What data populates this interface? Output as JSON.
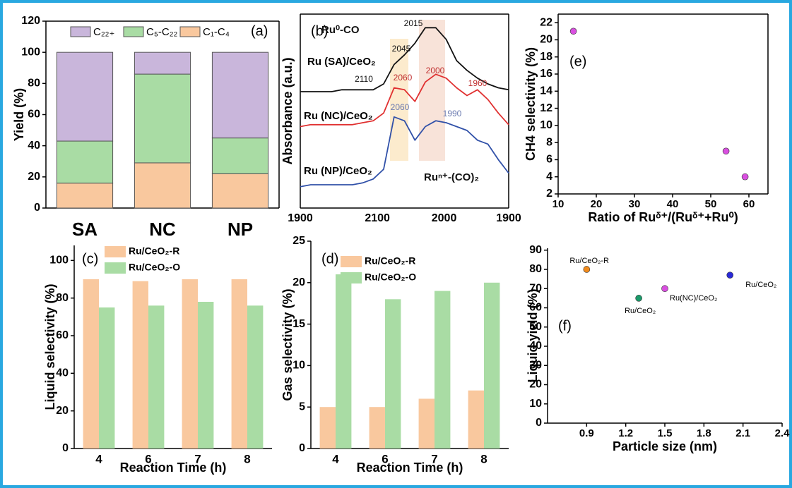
{
  "chart_data": [
    {
      "type": "bar",
      "stacked": true,
      "panel_label": "(a)",
      "ylabel": "Yield (%)",
      "categories": [
        "SA",
        "NC",
        "NP"
      ],
      "series": [
        {
          "name": "C₁-C₄",
          "color": "#f9c89e",
          "values": [
            16,
            29,
            22
          ]
        },
        {
          "name": "C₅-C₂₂",
          "color": "#a9dca4",
          "values": [
            27,
            57,
            23
          ]
        },
        {
          "name": "C₂₂₊",
          "color": "#c9b6db",
          "values": [
            57,
            14,
            55
          ]
        }
      ],
      "ylim": [
        0,
        120
      ],
      "yticks": [
        0,
        20,
        40,
        60,
        80,
        100,
        120
      ]
    },
    {
      "type": "line",
      "panel_label": "(b)",
      "ylabel": "Absorbance (a.u.)",
      "xtick_labels": [
        "1900",
        "2100",
        "2000",
        "1900"
      ],
      "ylim": [
        0,
        100
      ],
      "series": [
        {
          "name": "Ru (SA)/CeO₂",
          "color": "#111111",
          "values": [
            60,
            60,
            60,
            60,
            61,
            61,
            61,
            61,
            64,
            74,
            79,
            85,
            93,
            93,
            87,
            76,
            71,
            67,
            64,
            62,
            61
          ]
        },
        {
          "name": "Ru (NC)/CeO₂",
          "color": "#e03030",
          "values": [
            42,
            43,
            43,
            43,
            43,
            43,
            44,
            45,
            49,
            62,
            61,
            55,
            65,
            69,
            67,
            62,
            58,
            61,
            56,
            49,
            43
          ]
        },
        {
          "name": "Ru (NP)/CeO₂",
          "color": "#3050a8",
          "values": [
            11,
            12,
            12,
            12,
            12,
            12,
            13,
            15,
            20,
            47,
            45,
            35,
            42,
            45,
            44,
            42,
            40,
            35,
            33,
            25,
            18
          ]
        }
      ],
      "annotations": [
        "Ru⁰-CO",
        "2015",
        "2045",
        "2110",
        "2060",
        "2000",
        "1960",
        "2060",
        "1990",
        "Ruⁿ⁺-(CO)₂"
      ]
    },
    {
      "type": "bar",
      "panel_label": "(c)",
      "xlabel": "Reaction Time (h)",
      "ylabel": "Liquid selectivity (%)",
      "categories": [
        "4",
        "6",
        "7",
        "8"
      ],
      "series": [
        {
          "name": "Ru/CeO₂-R",
          "color": "#f9c89e",
          "values": [
            90,
            89,
            90,
            90
          ]
        },
        {
          "name": "Ru/CeO₂-O",
          "color": "#a9dca4",
          "values": [
            75,
            76,
            78,
            76
          ]
        }
      ],
      "ylim": [
        0,
        108
      ],
      "yticks": [
        0,
        20,
        40,
        60,
        80,
        100
      ]
    },
    {
      "type": "bar",
      "panel_label": "(d)",
      "xlabel": "Reaction Time (h)",
      "ylabel": "Gas selectivity (%)",
      "categories": [
        "4",
        "6",
        "7",
        "8"
      ],
      "series": [
        {
          "name": "Ru/CeO₂-R",
          "color": "#f9c89e",
          "values": [
            5,
            5,
            6,
            7
          ]
        },
        {
          "name": "Ru/CeO₂-O",
          "color": "#a9dca4",
          "values": [
            21,
            18,
            19,
            20
          ]
        }
      ],
      "ylim": [
        0,
        25
      ],
      "yticks": [
        0,
        5,
        10,
        15,
        20,
        25
      ]
    },
    {
      "type": "scatter",
      "panel_label": "(e)",
      "xlabel": "Ratio of Ruᵟ⁺/(Ruᵟ⁺+Ru⁰)",
      "ylabel": "CH4 selectivity (%)",
      "x": [
        14,
        54,
        59
      ],
      "values": [
        21,
        7,
        4
      ],
      "color": "#d94fe0",
      "xlim": [
        10,
        65
      ],
      "xticks": [
        10,
        20,
        30,
        40,
        50,
        60
      ],
      "ylim": [
        2,
        23
      ],
      "yticks": [
        2,
        4,
        6,
        8,
        10,
        12,
        14,
        16,
        18,
        20,
        22
      ]
    },
    {
      "type": "scatter",
      "panel_label": "(f)",
      "xlabel": "Particle size (nm)",
      "ylabel": "Liquid yield (%)",
      "x": [
        0.9,
        1.3,
        1.5,
        2.0
      ],
      "values": [
        80,
        65,
        70,
        77
      ],
      "colors": [
        "#f08a1c",
        "#1a9a6a",
        "#d94fe0",
        "#2a2ad8"
      ],
      "point_labels": [
        "Ru/CeO₂-R",
        "Ru/CeO₂",
        "Ru(NC)/CeO₂",
        "Ru/CeO₂"
      ],
      "xlim": [
        0.6,
        2.4
      ],
      "xticks": [
        0.9,
        1.2,
        1.5,
        1.8,
        2.1,
        2.4
      ],
      "ylim": [
        0,
        91
      ],
      "yticks": [
        0,
        10,
        20,
        30,
        40,
        50,
        60,
        70,
        80,
        90
      ]
    }
  ]
}
